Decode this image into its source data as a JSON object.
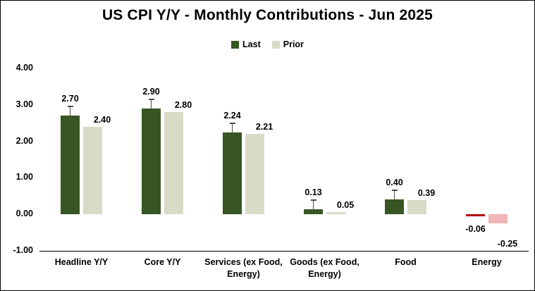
{
  "title": "US CPI Y/Y - Monthly Contributions - Jun 2025",
  "legend": [
    {
      "label": "Last",
      "color": "#375623"
    },
    {
      "label": "Prior",
      "color": "#d8dcc6"
    }
  ],
  "chart_data": {
    "type": "bar",
    "title": "US CPI Y/Y - Monthly Contributions - Jun 2025",
    "categories": [
      "Headline Y/Y",
      "Core Y/Y",
      "Services (ex Food, Energy)",
      "Goods (ex Food, Energy)",
      "Food",
      "Energy"
    ],
    "series": [
      {
        "name": "Last",
        "color": "#375623",
        "negative_color": "#b30000",
        "values": [
          2.7,
          2.9,
          2.24,
          0.13,
          0.4,
          -0.06
        ],
        "labels": [
          "2.70",
          "2.90",
          "2.24",
          "0.13",
          "0.40",
          "-0.06"
        ]
      },
      {
        "name": "Prior",
        "color": "#d8dcc6",
        "negative_color": "#f0b6b6",
        "values": [
          2.4,
          2.8,
          2.21,
          0.05,
          0.39,
          -0.25
        ],
        "labels": [
          "2.40",
          "2.80",
          "2.21",
          "0.05",
          "0.39",
          "-0.25"
        ]
      }
    ],
    "xlabel": "",
    "ylabel": "",
    "ylim": [
      -1.0,
      4.0
    ],
    "yticks": [
      {
        "label": "4.00",
        "value": 4
      },
      {
        "label": "3.00",
        "value": 3
      },
      {
        "label": "2.00",
        "value": 2
      },
      {
        "label": "1.00",
        "value": 1
      },
      {
        "label": "0.00",
        "value": 0
      },
      {
        "label": "-1.00",
        "value": -1
      }
    ],
    "grid": false,
    "legend_position": "top"
  }
}
